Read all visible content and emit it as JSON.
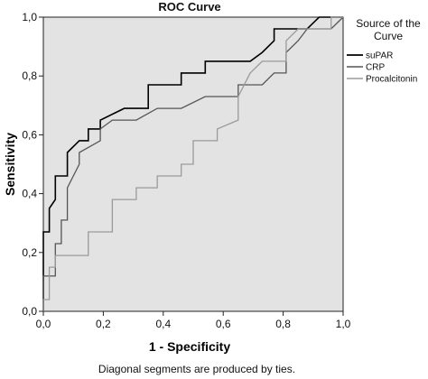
{
  "chart_data": {
    "type": "line",
    "title": "ROC Curve",
    "xlabel": "1 - Specificity",
    "ylabel": "Sensitivity",
    "xlim": [
      0,
      1
    ],
    "ylim": [
      0,
      1
    ],
    "xticks": [
      "0,0",
      "0,2",
      "0,4",
      "0,6",
      "0,8",
      "1,0"
    ],
    "yticks": [
      "0,0",
      "0,2",
      "0,4",
      "0,6",
      "0,8",
      "1,0"
    ],
    "footnote": "Diagonal segments are produced by ties.",
    "legend": {
      "title_line1": "Source of the",
      "title_line2": "Curve",
      "placement": "right"
    },
    "grid": false,
    "background": "#e3e3e3",
    "series": [
      {
        "name": "suPAR",
        "color": "#000000",
        "points": [
          [
            0,
            0
          ],
          [
            0,
            0.27
          ],
          [
            0.02,
            0.27
          ],
          [
            0.02,
            0.35
          ],
          [
            0.04,
            0.38
          ],
          [
            0.04,
            0.46
          ],
          [
            0.08,
            0.46
          ],
          [
            0.08,
            0.54
          ],
          [
            0.12,
            0.58
          ],
          [
            0.15,
            0.58
          ],
          [
            0.15,
            0.62
          ],
          [
            0.19,
            0.62
          ],
          [
            0.19,
            0.65
          ],
          [
            0.27,
            0.69
          ],
          [
            0.35,
            0.69
          ],
          [
            0.35,
            0.77
          ],
          [
            0.46,
            0.77
          ],
          [
            0.46,
            0.81
          ],
          [
            0.54,
            0.81
          ],
          [
            0.54,
            0.85
          ],
          [
            0.69,
            0.85
          ],
          [
            0.73,
            0.88
          ],
          [
            0.77,
            0.92
          ],
          [
            0.77,
            0.96
          ],
          [
            0.88,
            0.96
          ],
          [
            0.92,
            1.0
          ],
          [
            1,
            1
          ]
        ]
      },
      {
        "name": "CRP",
        "color": "#555555",
        "points": [
          [
            0,
            0
          ],
          [
            0,
            0.12
          ],
          [
            0.04,
            0.12
          ],
          [
            0.04,
            0.23
          ],
          [
            0.06,
            0.23
          ],
          [
            0.06,
            0.31
          ],
          [
            0.08,
            0.31
          ],
          [
            0.08,
            0.42
          ],
          [
            0.12,
            0.5
          ],
          [
            0.12,
            0.54
          ],
          [
            0.19,
            0.58
          ],
          [
            0.19,
            0.62
          ],
          [
            0.23,
            0.65
          ],
          [
            0.31,
            0.65
          ],
          [
            0.38,
            0.69
          ],
          [
            0.46,
            0.69
          ],
          [
            0.54,
            0.73
          ],
          [
            0.65,
            0.73
          ],
          [
            0.65,
            0.77
          ],
          [
            0.73,
            0.77
          ],
          [
            0.77,
            0.81
          ],
          [
            0.81,
            0.81
          ],
          [
            0.81,
            0.88
          ],
          [
            0.85,
            0.92
          ],
          [
            0.88,
            0.96
          ],
          [
            0.96,
            0.96
          ],
          [
            1,
            1
          ]
        ]
      },
      {
        "name": "Procalcitonin",
        "color": "#9a9a9a",
        "points": [
          [
            0,
            0
          ],
          [
            0,
            0.04
          ],
          [
            0.02,
            0.04
          ],
          [
            0.02,
            0.15
          ],
          [
            0.04,
            0.15
          ],
          [
            0.04,
            0.19
          ],
          [
            0.15,
            0.19
          ],
          [
            0.15,
            0.27
          ],
          [
            0.23,
            0.27
          ],
          [
            0.23,
            0.38
          ],
          [
            0.31,
            0.38
          ],
          [
            0.31,
            0.42
          ],
          [
            0.38,
            0.42
          ],
          [
            0.38,
            0.46
          ],
          [
            0.46,
            0.46
          ],
          [
            0.46,
            0.5
          ],
          [
            0.5,
            0.5
          ],
          [
            0.5,
            0.58
          ],
          [
            0.58,
            0.58
          ],
          [
            0.58,
            0.62
          ],
          [
            0.65,
            0.65
          ],
          [
            0.65,
            0.73
          ],
          [
            0.69,
            0.81
          ],
          [
            0.73,
            0.85
          ],
          [
            0.81,
            0.85
          ],
          [
            0.81,
            0.92
          ],
          [
            0.85,
            0.96
          ],
          [
            0.96,
            0.96
          ],
          [
            0.96,
            1.0
          ],
          [
            1,
            1
          ]
        ]
      }
    ]
  }
}
